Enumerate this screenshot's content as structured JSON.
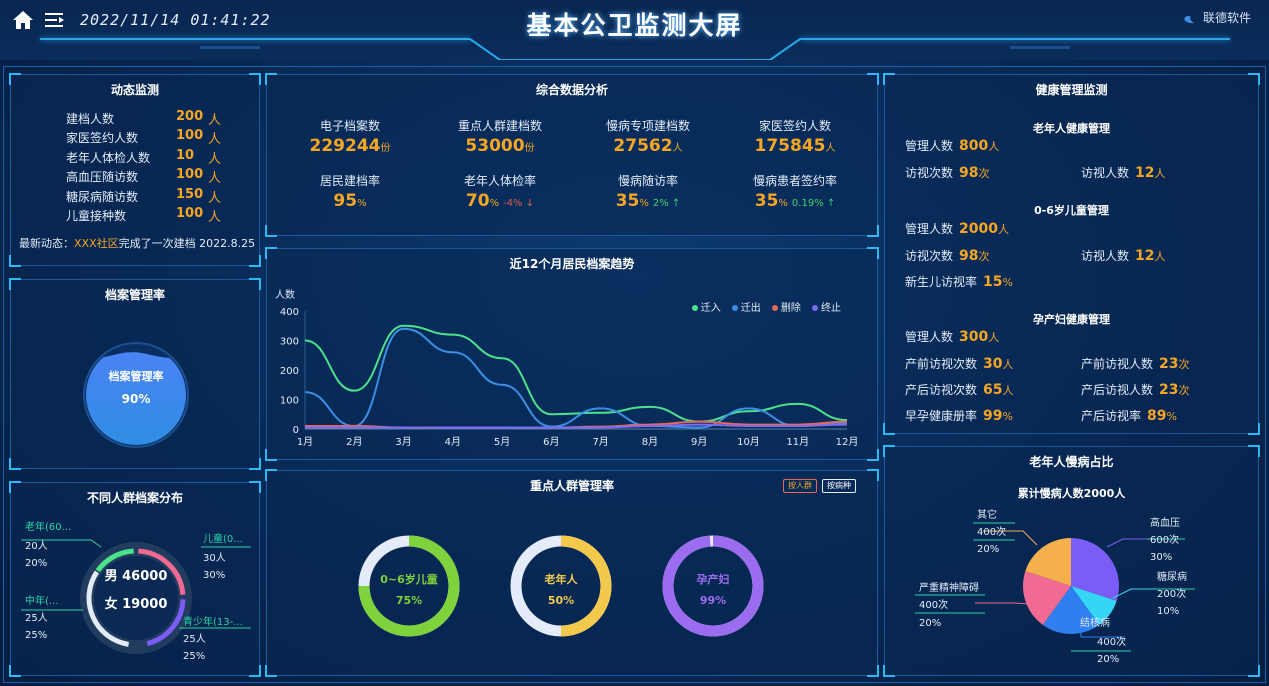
{
  "header": {
    "datetime": "2022/11/14 01:41:22",
    "title": "基本公卫监测大屏",
    "brand": "联德软件"
  },
  "dynamic": {
    "title": "动态监测",
    "rows": [
      {
        "label": "建档人数",
        "value": "200",
        "unit": "人"
      },
      {
        "label": "家医签约人数",
        "value": "100",
        "unit": "人"
      },
      {
        "label": "老年人体检人数",
        "value": "10",
        "unit": "人"
      },
      {
        "label": "高血压随访数",
        "value": "100",
        "unit": "人"
      },
      {
        "label": "糖尿病随访数",
        "value": "150",
        "unit": "人"
      },
      {
        "label": "儿童接种数",
        "value": "100",
        "unit": "人"
      }
    ],
    "latest_prefix": "最新动态：",
    "latest_place": "XXX社区",
    "latest_text": "完成了一次建档 2022.8.25"
  },
  "archive": {
    "title": "档案管理率",
    "label": "档案管理率",
    "value": "90%",
    "fraction": 0.9
  },
  "distribution": {
    "title": "不同人群档案分布",
    "male": "男 46000",
    "female": "女 19000",
    "labels": [
      {
        "name": "老年(60...",
        "count": "20人",
        "pct": "20%"
      },
      {
        "name": "儿童(0...",
        "count": "30人",
        "pct": "30%"
      },
      {
        "name": "中年(...",
        "count": "25人",
        "pct": "25%"
      },
      {
        "name": "青少年(13-...",
        "count": "25人",
        "pct": "25%"
      }
    ]
  },
  "analysis": {
    "title": "综合数据分析",
    "stats": [
      {
        "label": "电子档案数",
        "value": "229244",
        "unit": "份",
        "change": ""
      },
      {
        "label": "重点人群建档数",
        "value": "53000",
        "unit": "份",
        "change": ""
      },
      {
        "label": "慢病专项建档数",
        "value": "27562",
        "unit": "人",
        "change": ""
      },
      {
        "label": "家医签约人数",
        "value": "175845",
        "unit": "人",
        "change": ""
      },
      {
        "label": "居民建档率",
        "value": "95",
        "unit": "%",
        "change": ""
      },
      {
        "label": "老年人体检率",
        "value": "70",
        "unit": "%",
        "change": "-4% ↓"
      },
      {
        "label": "慢病随访率",
        "value": "35",
        "unit": "%",
        "change": "2% ↑"
      },
      {
        "label": "慢病患者签约率",
        "value": "35",
        "unit": "%",
        "change": "0.19% ↑"
      }
    ]
  },
  "trend": {
    "title": "近12个月居民档案趋势"
  },
  "chart_data": {
    "type": "line",
    "title": "近12个月居民档案趋势",
    "ylabel": "人数",
    "ylim": [
      0,
      400
    ],
    "yticks": [
      0,
      100,
      200,
      300,
      400
    ],
    "categories": [
      "1月",
      "2月",
      "3月",
      "4月",
      "5月",
      "6月",
      "7月",
      "8月",
      "9月",
      "10月",
      "11月",
      "12月"
    ],
    "legend_position": "top-right",
    "series": [
      {
        "name": "迁入",
        "color": "#4be38a",
        "values": [
          300,
          130,
          350,
          320,
          240,
          50,
          55,
          75,
          25,
          60,
          85,
          30
        ]
      },
      {
        "name": "迁出",
        "color": "#3d8fe6",
        "values": [
          125,
          10,
          340,
          260,
          150,
          8,
          70,
          10,
          5,
          70,
          10,
          20
        ]
      },
      {
        "name": "删除",
        "color": "#e8665a",
        "values": [
          10,
          10,
          5,
          5,
          5,
          5,
          8,
          15,
          25,
          15,
          15,
          25
        ]
      },
      {
        "name": "终止",
        "color": "#7b6cf0",
        "values": [
          5,
          5,
          5,
          5,
          5,
          5,
          5,
          10,
          15,
          10,
          10,
          15
        ]
      }
    ]
  },
  "keygroup": {
    "title": "重点人群管理率",
    "btn_group": "按人群",
    "btn_disease": "按病种",
    "rings": [
      {
        "label": "0~6岁儿童",
        "value": "75%",
        "fraction": 0.75,
        "color": "#7ed23b",
        "text_color": "#7ed23b"
      },
      {
        "label": "老年人",
        "value": "50%",
        "fraction": 0.5,
        "color": "#f2c94c",
        "text_color": "#f2c94c"
      },
      {
        "label": "孕产妇",
        "value": "99%",
        "fraction": 0.99,
        "color": "#9b6cf0",
        "text_color": "#9b6cf0"
      }
    ]
  },
  "health": {
    "title": "健康管理监测",
    "elder_title": "老年人健康管理",
    "elder_mgr_label": "管理人数",
    "elder_mgr_value": "800",
    "elder_mgr_unit": "人",
    "elder_visit_label": "访视次数",
    "elder_visit_value": "98",
    "elder_visit_unit": "次",
    "elder_visitp_label": "访视人数",
    "elder_visitp_value": "12",
    "elder_visitp_unit": "人",
    "child_title": "0-6岁儿童管理",
    "child_mgr_label": "管理人数",
    "child_mgr_value": "2000",
    "child_mgr_unit": "人",
    "child_visit_label": "访视次数",
    "child_visit_value": "98",
    "child_visit_unit": "次",
    "child_visitp_label": "访视人数",
    "child_visitp_value": "12",
    "child_visitp_unit": "人",
    "child_nb_label": "新生儿访视率",
    "child_nb_value": "15",
    "child_nb_unit": "%",
    "preg_title": "孕产妇健康管理",
    "preg_mgr_label": "管理人数",
    "preg_mgr_value": "300",
    "preg_mgr_unit": "人",
    "preg_pre_label": "产前访视次数",
    "preg_pre_value": "30",
    "preg_pre_unit": "人",
    "preg_prep_label": "产前访视人数",
    "preg_prep_value": "23",
    "preg_prep_unit": "次",
    "preg_post_label": "产后访视次数",
    "preg_post_value": "65",
    "preg_post_unit": "人",
    "preg_postp_label": "产后访视人数",
    "preg_postp_value": "23",
    "preg_postp_unit": "次",
    "preg_early_label": "早孕健康册率",
    "preg_early_value": "99",
    "preg_early_unit": "%",
    "preg_postr_label": "产后访视率",
    "preg_postr_value": "89",
    "preg_postr_unit": "%"
  },
  "chronic": {
    "title": "老年人慢病占比",
    "total": "累计慢病人数2000人",
    "slices": [
      {
        "name": "高血压",
        "count": "600次",
        "pct": "30%",
        "value": 30,
        "color": "#7b5cf5"
      },
      {
        "name": "糖尿病",
        "count": "200次",
        "pct": "10%",
        "value": 10,
        "color": "#35d6f5"
      },
      {
        "name": "结核病",
        "count": "400次",
        "pct": "20%",
        "value": 20,
        "color": "#2f7ff0"
      },
      {
        "name": "严重精神障碍",
        "count": "400次",
        "pct": "20%",
        "value": 20,
        "color": "#f06a93"
      },
      {
        "name": "其它",
        "count": "400次",
        "pct": "20%",
        "value": 20,
        "color": "#f5b04e"
      }
    ]
  }
}
